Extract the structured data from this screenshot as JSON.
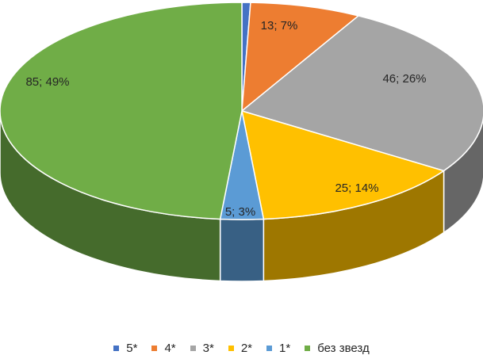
{
  "chart_data": {
    "type": "pie",
    "style": "3d",
    "title": "",
    "legend_position": "bottom",
    "slices": [
      {
        "name": "5*",
        "value": 1,
        "percent": 1,
        "label": "",
        "color": "#4472C4"
      },
      {
        "name": "4*",
        "value": 13,
        "percent": 7,
        "label": "13; 7%",
        "color": "#ED7D31"
      },
      {
        "name": "3*",
        "value": 46,
        "percent": 26,
        "label": "46; 26%",
        "color": "#A5A5A5"
      },
      {
        "name": "2*",
        "value": 25,
        "percent": 14,
        "label": "25; 14%",
        "color": "#FFC000"
      },
      {
        "name": "1*",
        "value": 5,
        "percent": 3,
        "label": "5; 3%",
        "color": "#5B9BD5"
      },
      {
        "name": "без звезд",
        "value": 85,
        "percent": 49,
        "label": "85; 49%",
        "color": "#70AD47"
      }
    ]
  }
}
